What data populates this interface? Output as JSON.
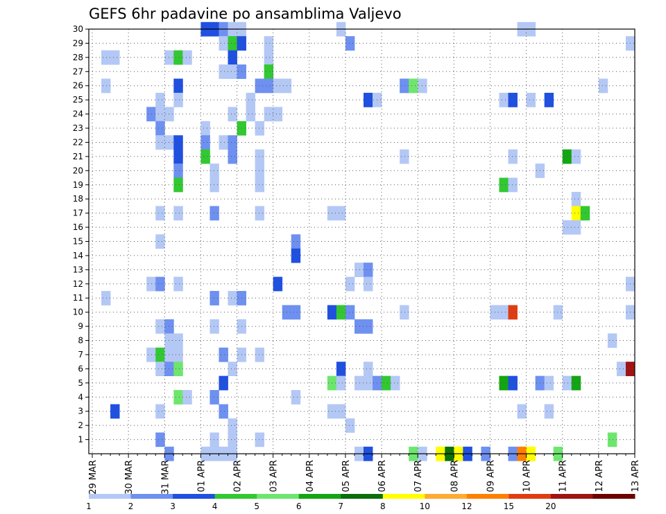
{
  "chart_data": {
    "type": "heatmap",
    "title": "GEFS 6hr padavine po ansamblima Valjevo",
    "xlabel": "",
    "ylabel": "",
    "y_members": [
      "1",
      "2",
      "3",
      "4",
      "5",
      "6",
      "7",
      "8",
      "9",
      "10",
      "11",
      "12",
      "13",
      "14",
      "15",
      "16",
      "17",
      "18",
      "19",
      "20",
      "21",
      "22",
      "23",
      "24",
      "25",
      "26",
      "27",
      "28",
      "29",
      "30"
    ],
    "x_ticks": [
      "29 MAR",
      "30 MAR",
      "31 MAR",
      "01 APR",
      "02 APR",
      "03 APR",
      "04 APR",
      "05 APR",
      "06 APR",
      "07 APR",
      "08 APR",
      "09 APR",
      "10 APR",
      "11 APR",
      "12 APR",
      "13 APR"
    ],
    "time_steps_per_day": 4,
    "n_steps": 60,
    "grid": "dotted",
    "colorbar": {
      "position": "bottom",
      "labels": [
        "1",
        "2",
        "3",
        "4",
        "5",
        "6",
        "7",
        "8",
        "10",
        "12",
        "15",
        "20"
      ],
      "colors": [
        "#b4c8f5",
        "#6e90f0",
        "#2050e0",
        "#32c832",
        "#6ee66e",
        "#13a513",
        "#0b6e0b",
        "#ffff00",
        "#ffaa32",
        "#ff8000",
        "#e03c14",
        "#a01414",
        "#6e0000"
      ]
    },
    "cells": [
      [
        30,
        12,
        3
      ],
      [
        30,
        13,
        3
      ],
      [
        30,
        14,
        2
      ],
      [
        30,
        15,
        1
      ],
      [
        30,
        16,
        1
      ],
      [
        30,
        27,
        1
      ],
      [
        30,
        47,
        1
      ],
      [
        30,
        48,
        1
      ],
      [
        29,
        14,
        1
      ],
      [
        29,
        15,
        4
      ],
      [
        29,
        16,
        3
      ],
      [
        29,
        19,
        1
      ],
      [
        29,
        28,
        2
      ],
      [
        29,
        59,
        1
      ],
      [
        28,
        1,
        1
      ],
      [
        28,
        2,
        1
      ],
      [
        28,
        8,
        1
      ],
      [
        28,
        9,
        4
      ],
      [
        28,
        10,
        1
      ],
      [
        28,
        15,
        3
      ],
      [
        28,
        19,
        1
      ],
      [
        27,
        14,
        1
      ],
      [
        27,
        15,
        1
      ],
      [
        27,
        16,
        2
      ],
      [
        27,
        19,
        4
      ],
      [
        26,
        1,
        1
      ],
      [
        26,
        9,
        3
      ],
      [
        26,
        18,
        2
      ],
      [
        26,
        19,
        2
      ],
      [
        26,
        20,
        1
      ],
      [
        26,
        21,
        1
      ],
      [
        26,
        34,
        2
      ],
      [
        26,
        35,
        5
      ],
      [
        26,
        36,
        1
      ],
      [
        26,
        56,
        1
      ],
      [
        25,
        7,
        1
      ],
      [
        25,
        9,
        1
      ],
      [
        25,
        17,
        1
      ],
      [
        25,
        30,
        3
      ],
      [
        25,
        31,
        1
      ],
      [
        25,
        45,
        1
      ],
      [
        25,
        46,
        3
      ],
      [
        25,
        48,
        1
      ],
      [
        25,
        50,
        3
      ],
      [
        24,
        6,
        2
      ],
      [
        24,
        7,
        1
      ],
      [
        24,
        8,
        1
      ],
      [
        24,
        15,
        1
      ],
      [
        24,
        17,
        1
      ],
      [
        24,
        19,
        1
      ],
      [
        24,
        20,
        1
      ],
      [
        23,
        7,
        2
      ],
      [
        23,
        12,
        1
      ],
      [
        23,
        16,
        4
      ],
      [
        23,
        18,
        1
      ],
      [
        22,
        7,
        1
      ],
      [
        22,
        8,
        1
      ],
      [
        22,
        9,
        3
      ],
      [
        22,
        12,
        2
      ],
      [
        22,
        14,
        1
      ],
      [
        22,
        15,
        2
      ],
      [
        21,
        9,
        3
      ],
      [
        21,
        12,
        4
      ],
      [
        21,
        15,
        2
      ],
      [
        21,
        18,
        1
      ],
      [
        21,
        34,
        1
      ],
      [
        21,
        46,
        1
      ],
      [
        21,
        52,
        6
      ],
      [
        21,
        53,
        1
      ],
      [
        20,
        9,
        2
      ],
      [
        20,
        13,
        1
      ],
      [
        20,
        18,
        1
      ],
      [
        20,
        49,
        1
      ],
      [
        19,
        9,
        4
      ],
      [
        19,
        13,
        1
      ],
      [
        19,
        18,
        1
      ],
      [
        19,
        45,
        4
      ],
      [
        19,
        46,
        1
      ],
      [
        18,
        53,
        1
      ],
      [
        17,
        7,
        1
      ],
      [
        17,
        9,
        1
      ],
      [
        17,
        13,
        2
      ],
      [
        17,
        18,
        1
      ],
      [
        17,
        26,
        1
      ],
      [
        17,
        27,
        1
      ],
      [
        17,
        53,
        8
      ],
      [
        17,
        54,
        4
      ],
      [
        16,
        52,
        1
      ],
      [
        16,
        53,
        1
      ],
      [
        15,
        7,
        1
      ],
      [
        15,
        22,
        2
      ],
      [
        14,
        22,
        3
      ],
      [
        13,
        29,
        1
      ],
      [
        13,
        30,
        2
      ],
      [
        12,
        6,
        1
      ],
      [
        12,
        7,
        2
      ],
      [
        12,
        9,
        1
      ],
      [
        12,
        20,
        3
      ],
      [
        12,
        28,
        1
      ],
      [
        12,
        30,
        1
      ],
      [
        12,
        59,
        1
      ],
      [
        11,
        1,
        1
      ],
      [
        11,
        13,
        2
      ],
      [
        11,
        15,
        1
      ],
      [
        11,
        16,
        2
      ],
      [
        10,
        21,
        2
      ],
      [
        10,
        22,
        2
      ],
      [
        10,
        26,
        3
      ],
      [
        10,
        27,
        4
      ],
      [
        10,
        28,
        2
      ],
      [
        10,
        34,
        1
      ],
      [
        10,
        44,
        1
      ],
      [
        10,
        45,
        1
      ],
      [
        10,
        46,
        11
      ],
      [
        10,
        51,
        1
      ],
      [
        10,
        59,
        1
      ],
      [
        9,
        7,
        1
      ],
      [
        9,
        8,
        2
      ],
      [
        9,
        13,
        1
      ],
      [
        9,
        16,
        1
      ],
      [
        9,
        29,
        2
      ],
      [
        9,
        30,
        2
      ],
      [
        8,
        8,
        1
      ],
      [
        8,
        9,
        1
      ],
      [
        8,
        57,
        1
      ],
      [
        7,
        6,
        1
      ],
      [
        7,
        7,
        4
      ],
      [
        7,
        8,
        1
      ],
      [
        7,
        9,
        1
      ],
      [
        7,
        14,
        2
      ],
      [
        7,
        16,
        1
      ],
      [
        7,
        18,
        1
      ],
      [
        6,
        7,
        1
      ],
      [
        6,
        8,
        2
      ],
      [
        6,
        9,
        5
      ],
      [
        6,
        15,
        1
      ],
      [
        6,
        27,
        3
      ],
      [
        6,
        30,
        1
      ],
      [
        6,
        58,
        1
      ],
      [
        6,
        59,
        12
      ],
      [
        5,
        14,
        3
      ],
      [
        5,
        26,
        5
      ],
      [
        5,
        27,
        1
      ],
      [
        5,
        29,
        1
      ],
      [
        5,
        30,
        1
      ],
      [
        5,
        31,
        2
      ],
      [
        5,
        32,
        4
      ],
      [
        5,
        33,
        1
      ],
      [
        5,
        45,
        6
      ],
      [
        5,
        46,
        3
      ],
      [
        5,
        49,
        2
      ],
      [
        5,
        50,
        1
      ],
      [
        5,
        52,
        1
      ],
      [
        5,
        53,
        6
      ],
      [
        4,
        9,
        5
      ],
      [
        4,
        10,
        1
      ],
      [
        4,
        13,
        2
      ],
      [
        4,
        22,
        1
      ],
      [
        3,
        2,
        3
      ],
      [
        3,
        7,
        1
      ],
      [
        3,
        14,
        2
      ],
      [
        3,
        26,
        1
      ],
      [
        3,
        27,
        1
      ],
      [
        3,
        47,
        1
      ],
      [
        3,
        50,
        1
      ],
      [
        2,
        15,
        1
      ],
      [
        2,
        28,
        1
      ],
      [
        1,
        7,
        2
      ],
      [
        1,
        13,
        1
      ],
      [
        1,
        15,
        1
      ],
      [
        1,
        18,
        1
      ],
      [
        1,
        57,
        5
      ],
      [
        0,
        8,
        2
      ],
      [
        0,
        12,
        1
      ],
      [
        0,
        13,
        1
      ],
      [
        0,
        14,
        1
      ],
      [
        0,
        15,
        1
      ],
      [
        0,
        29,
        1
      ],
      [
        0,
        30,
        3
      ],
      [
        0,
        35,
        5
      ],
      [
        0,
        36,
        1
      ],
      [
        0,
        38,
        8
      ],
      [
        0,
        39,
        7
      ],
      [
        0,
        40,
        8
      ],
      [
        0,
        41,
        3
      ],
      [
        0,
        43,
        2
      ],
      [
        0,
        46,
        2
      ],
      [
        0,
        47,
        10
      ],
      [
        0,
        48,
        8
      ],
      [
        0,
        51,
        5
      ]
    ]
  }
}
